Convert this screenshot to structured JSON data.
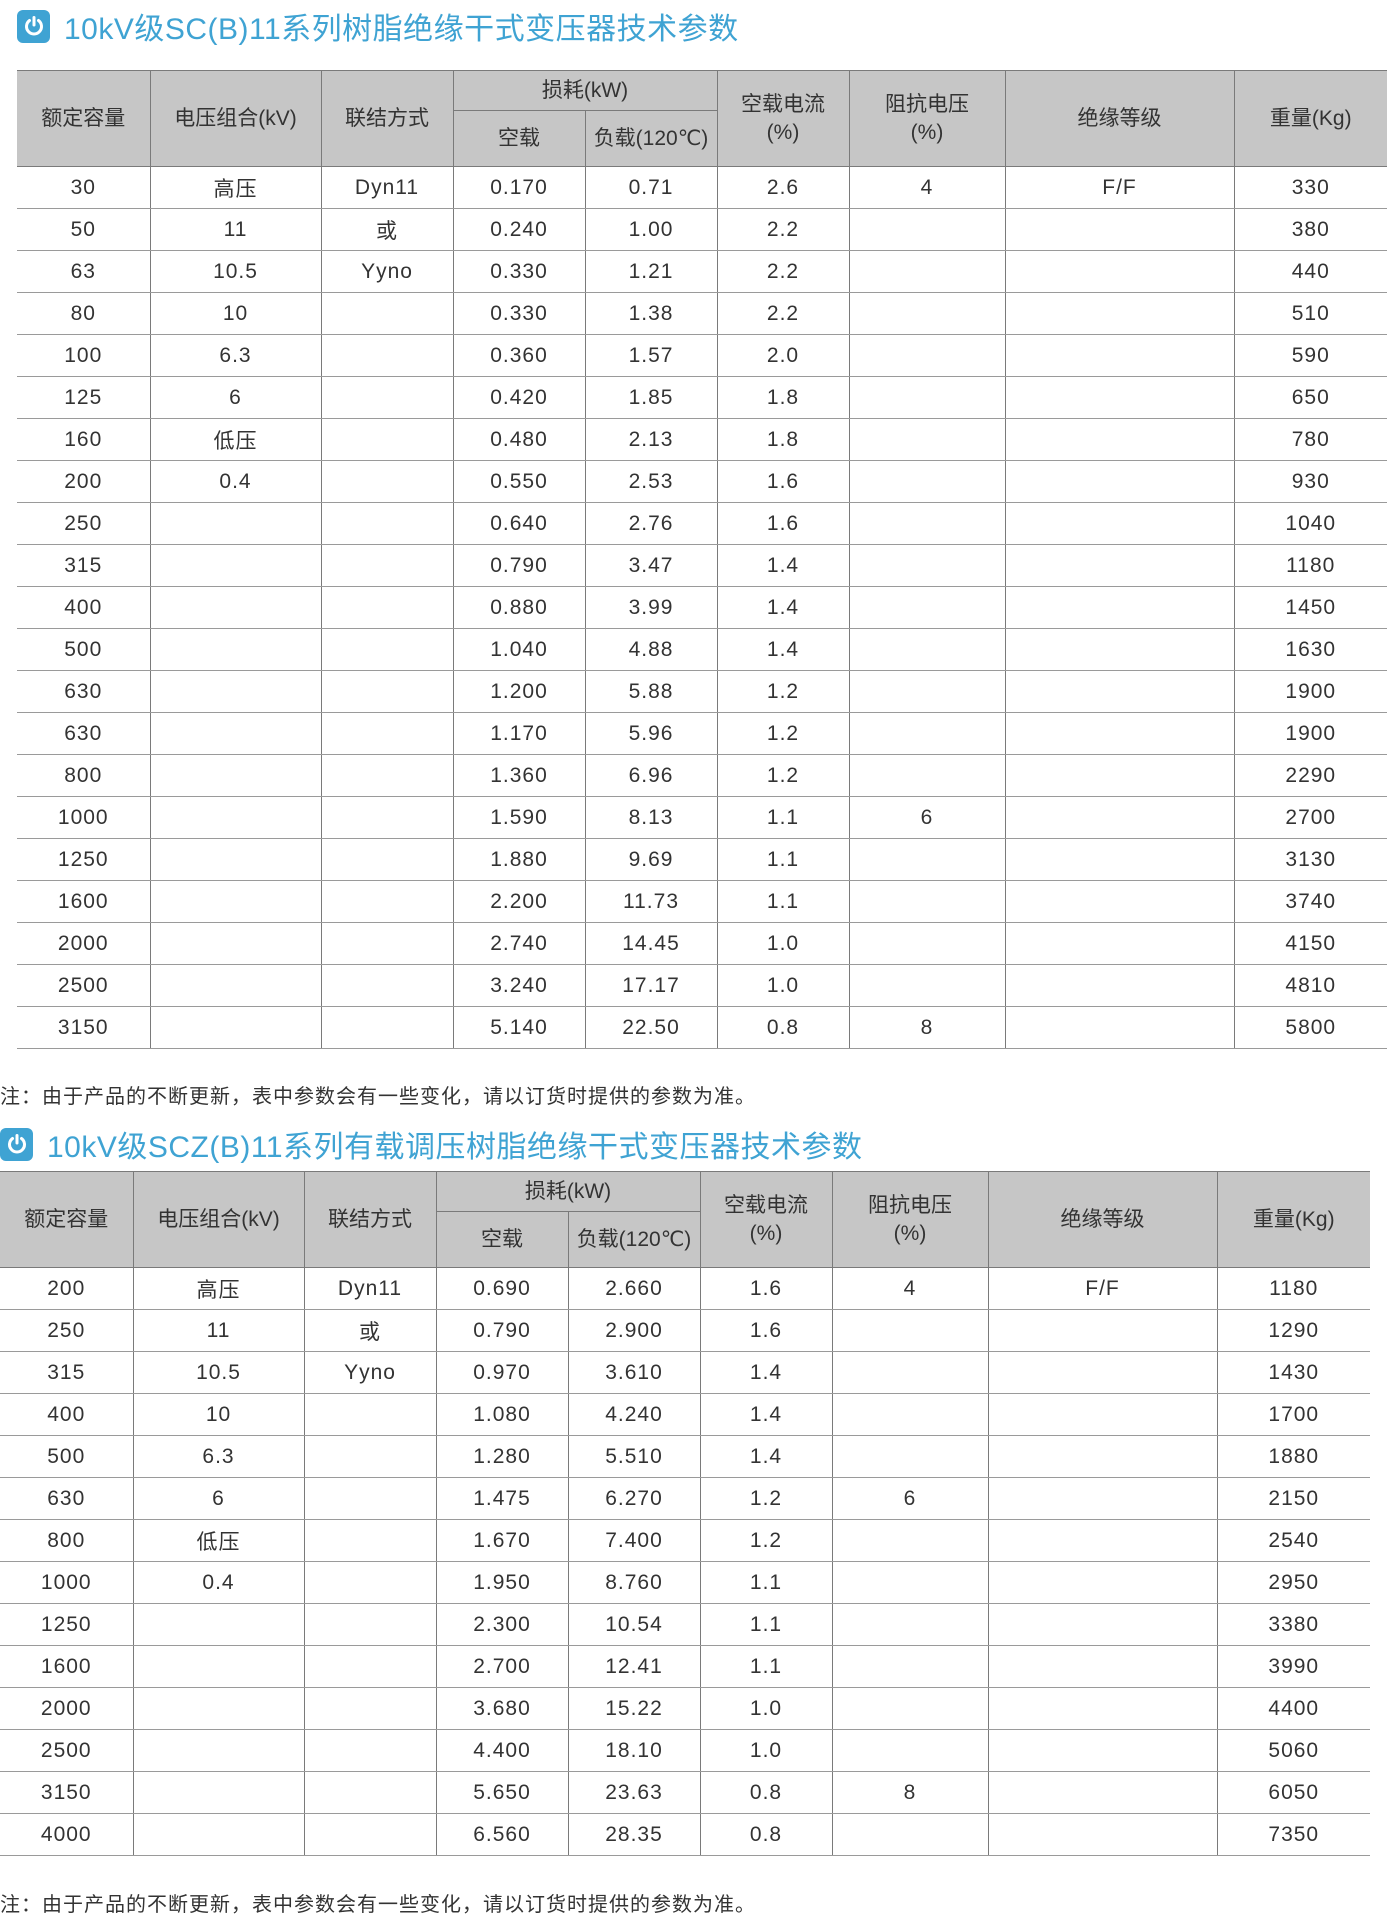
{
  "colors": {
    "accent": "#3fa3d3",
    "header_bg": "#c6c6c6"
  },
  "icon": "power-icon",
  "headers": {
    "capacity": "额定容量",
    "voltage": "电压组合(kV)",
    "connection": "联结方式",
    "loss": "损耗(kW)",
    "no_load": "空载",
    "load": "负载(120℃)",
    "no_load_current": "空载电流",
    "no_load_current_unit": "(%)",
    "impedance": "阻抗电压",
    "impedance_unit": "(%)",
    "insulation": "绝缘等级",
    "weight": "重量(Kg)"
  },
  "tables": [
    {
      "title": "10kV级SC(B)11系列树脂绝缘干式变压器技术参数",
      "note": "注：由于产品的不断更新，表中参数会有一些变化，请以订货时提供的参数为准。",
      "rows": [
        [
          "30",
          "高压",
          "Dyn11",
          "0.170",
          "0.71",
          "2.6",
          "4",
          "F/F",
          "330"
        ],
        [
          "50",
          "11",
          "或",
          "0.240",
          "1.00",
          "2.2",
          "",
          "",
          "380"
        ],
        [
          "63",
          "10.5",
          "Yyno",
          "0.330",
          "1.21",
          "2.2",
          "",
          "",
          "440"
        ],
        [
          "80",
          "10",
          "",
          "0.330",
          "1.38",
          "2.2",
          "",
          "",
          "510"
        ],
        [
          "100",
          "6.3",
          "",
          "0.360",
          "1.57",
          "2.0",
          "",
          "",
          "590"
        ],
        [
          "125",
          "6",
          "",
          "0.420",
          "1.85",
          "1.8",
          "",
          "",
          "650"
        ],
        [
          "160",
          "低压",
          "",
          "0.480",
          "2.13",
          "1.8",
          "",
          "",
          "780"
        ],
        [
          "200",
          "0.4",
          "",
          "0.550",
          "2.53",
          "1.6",
          "",
          "",
          "930"
        ],
        [
          "250",
          "",
          "",
          "0.640",
          "2.76",
          "1.6",
          "",
          "",
          "1040"
        ],
        [
          "315",
          "",
          "",
          "0.790",
          "3.47",
          "1.4",
          "",
          "",
          "1180"
        ],
        [
          "400",
          "",
          "",
          "0.880",
          "3.99",
          "1.4",
          "",
          "",
          "1450"
        ],
        [
          "500",
          "",
          "",
          "1.040",
          "4.88",
          "1.4",
          "",
          "",
          "1630"
        ],
        [
          "630",
          "",
          "",
          "1.200",
          "5.88",
          "1.2",
          "",
          "",
          "1900"
        ],
        [
          "630",
          "",
          "",
          "1.170",
          "5.96",
          "1.2",
          "",
          "",
          "1900"
        ],
        [
          "800",
          "",
          "",
          "1.360",
          "6.96",
          "1.2",
          "",
          "",
          "2290"
        ],
        [
          "1000",
          "",
          "",
          "1.590",
          "8.13",
          "1.1",
          "6",
          "",
          "2700"
        ],
        [
          "1250",
          "",
          "",
          "1.880",
          "9.69",
          "1.1",
          "",
          "",
          "3130"
        ],
        [
          "1600",
          "",
          "",
          "2.200",
          "11.73",
          "1.1",
          "",
          "",
          "3740"
        ],
        [
          "2000",
          "",
          "",
          "2.740",
          "14.45",
          "1.0",
          "",
          "",
          "4150"
        ],
        [
          "2500",
          "",
          "",
          "3.240",
          "17.17",
          "1.0",
          "",
          "",
          "4810"
        ],
        [
          "3150",
          "",
          "",
          "5.140",
          "22.50",
          "0.8",
          "8",
          "",
          "5800"
        ]
      ]
    },
    {
      "title": "10kV级SCZ(B)11系列有载调压树脂绝缘干式变压器技术参数",
      "note": "注：由于产品的不断更新，表中参数会有一些变化，请以订货时提供的参数为准。",
      "rows": [
        [
          "200",
          "高压",
          "Dyn11",
          "0.690",
          "2.660",
          "1.6",
          "4",
          "F/F",
          "1180"
        ],
        [
          "250",
          "11",
          "或",
          "0.790",
          "2.900",
          "1.6",
          "",
          "",
          "1290"
        ],
        [
          "315",
          "10.5",
          "Yyno",
          "0.970",
          "3.610",
          "1.4",
          "",
          "",
          "1430"
        ],
        [
          "400",
          "10",
          "",
          "1.080",
          "4.240",
          "1.4",
          "",
          "",
          "1700"
        ],
        [
          "500",
          "6.3",
          "",
          "1.280",
          "5.510",
          "1.4",
          "",
          "",
          "1880"
        ],
        [
          "630",
          "6",
          "",
          "1.475",
          "6.270",
          "1.2",
          "6",
          "",
          "2150"
        ],
        [
          "800",
          "低压",
          "",
          "1.670",
          "7.400",
          "1.2",
          "",
          "",
          "2540"
        ],
        [
          "1000",
          "0.4",
          "",
          "1.950",
          "8.760",
          "1.1",
          "",
          "",
          "2950"
        ],
        [
          "1250",
          "",
          "",
          "2.300",
          "10.54",
          "1.1",
          "",
          "",
          "3380"
        ],
        [
          "1600",
          "",
          "",
          "2.700",
          "12.41",
          "1.1",
          "",
          "",
          "3990"
        ],
        [
          "2000",
          "",
          "",
          "3.680",
          "15.22",
          "1.0",
          "",
          "",
          "4400"
        ],
        [
          "2500",
          "",
          "",
          "4.400",
          "18.10",
          "1.0",
          "",
          "",
          "5060"
        ],
        [
          "3150",
          "",
          "",
          "5.650",
          "23.63",
          "0.8",
          "8",
          "",
          "6050"
        ],
        [
          "4000",
          "",
          "",
          "6.560",
          "28.35",
          "0.8",
          "",
          "",
          "7350"
        ]
      ]
    }
  ]
}
